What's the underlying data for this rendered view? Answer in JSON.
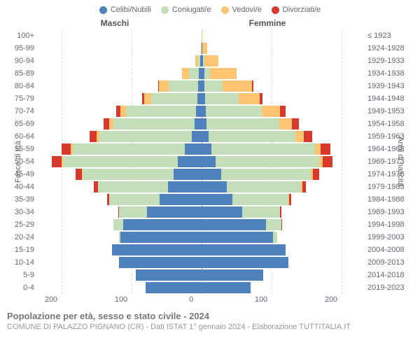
{
  "legend": [
    {
      "label": "Celibi/Nubili",
      "color": "#4f81bd"
    },
    {
      "label": "Coniugati/e",
      "color": "#c3deb8"
    },
    {
      "label": "Vedovi/e",
      "color": "#fdc571"
    },
    {
      "label": "Divorziati/e",
      "color": "#d73a2d"
    }
  ],
  "headers": {
    "male": "Maschi",
    "female": "Femmine"
  },
  "y_axis_left": "Fasce di età",
  "y_axis_right": "Anni di nascita",
  "colors": {
    "celibi": "#4f81bd",
    "coniugati": "#c3deb8",
    "vedovi": "#fdc571",
    "divorziati": "#d73a2d",
    "grid": "#dddddd",
    "text": "#667788"
  },
  "x_axis": {
    "max": 218,
    "ticks": [
      -200,
      -100,
      0,
      100,
      200
    ],
    "labels": [
      "200",
      "100",
      "0",
      "100",
      "200"
    ]
  },
  "age_bands": [
    {
      "age": "100+",
      "birth": "≤ 1923",
      "m": {
        "c": 0,
        "co": 0,
        "v": 0,
        "d": 0
      },
      "f": {
        "c": 0,
        "co": 0,
        "v": 1,
        "d": 0
      }
    },
    {
      "age": "95-99",
      "birth": "1924-1928",
      "m": {
        "c": 0,
        "co": 0,
        "v": 1,
        "d": 0
      },
      "f": {
        "c": 1,
        "co": 0,
        "v": 7,
        "d": 0
      }
    },
    {
      "age": "90-94",
      "birth": "1929-1933",
      "m": {
        "c": 2,
        "co": 3,
        "v": 4,
        "d": 0
      },
      "f": {
        "c": 2,
        "co": 2,
        "v": 20,
        "d": 0
      }
    },
    {
      "age": "85-89",
      "birth": "1934-1938",
      "m": {
        "c": 4,
        "co": 14,
        "v": 10,
        "d": 0
      },
      "f": {
        "c": 4,
        "co": 8,
        "v": 38,
        "d": 0
      }
    },
    {
      "age": "80-84",
      "birth": "1939-1943",
      "m": {
        "c": 5,
        "co": 42,
        "v": 14,
        "d": 1
      },
      "f": {
        "c": 4,
        "co": 26,
        "v": 42,
        "d": 2
      }
    },
    {
      "age": "75-79",
      "birth": "1944-1948",
      "m": {
        "c": 6,
        "co": 66,
        "v": 10,
        "d": 3
      },
      "f": {
        "c": 5,
        "co": 48,
        "v": 30,
        "d": 4
      }
    },
    {
      "age": "70-74",
      "birth": "1949-1953",
      "m": {
        "c": 8,
        "co": 100,
        "v": 8,
        "d": 6
      },
      "f": {
        "c": 6,
        "co": 80,
        "v": 26,
        "d": 8
      }
    },
    {
      "age": "65-69",
      "birth": "1954-1958",
      "m": {
        "c": 10,
        "co": 116,
        "v": 6,
        "d": 8
      },
      "f": {
        "c": 7,
        "co": 104,
        "v": 18,
        "d": 10
      }
    },
    {
      "age": "60-64",
      "birth": "1959-1963",
      "m": {
        "c": 14,
        "co": 132,
        "v": 4,
        "d": 10
      },
      "f": {
        "c": 10,
        "co": 124,
        "v": 12,
        "d": 12
      }
    },
    {
      "age": "55-59",
      "birth": "1964-1968",
      "m": {
        "c": 24,
        "co": 160,
        "v": 3,
        "d": 13
      },
      "f": {
        "c": 14,
        "co": 148,
        "v": 8,
        "d": 14
      }
    },
    {
      "age": "50-54",
      "birth": "1969-1973",
      "m": {
        "c": 34,
        "co": 164,
        "v": 2,
        "d": 14
      },
      "f": {
        "c": 20,
        "co": 148,
        "v": 5,
        "d": 14
      }
    },
    {
      "age": "45-49",
      "birth": "1974-1978",
      "m": {
        "c": 40,
        "co": 130,
        "v": 1,
        "d": 9
      },
      "f": {
        "c": 28,
        "co": 128,
        "v": 3,
        "d": 9
      }
    },
    {
      "age": "40-44",
      "birth": "1979-1983",
      "m": {
        "c": 48,
        "co": 100,
        "v": 0,
        "d": 6
      },
      "f": {
        "c": 36,
        "co": 106,
        "v": 2,
        "d": 5
      }
    },
    {
      "age": "35-39",
      "birth": "1984-1988",
      "m": {
        "c": 60,
        "co": 72,
        "v": 0,
        "d": 3
      },
      "f": {
        "c": 44,
        "co": 80,
        "v": 1,
        "d": 3
      }
    },
    {
      "age": "30-34",
      "birth": "1989-1993",
      "m": {
        "c": 78,
        "co": 40,
        "v": 0,
        "d": 1
      },
      "f": {
        "c": 58,
        "co": 54,
        "v": 0,
        "d": 2
      }
    },
    {
      "age": "25-29",
      "birth": "1994-1998",
      "m": {
        "c": 112,
        "co": 14,
        "v": 0,
        "d": 0
      },
      "f": {
        "c": 92,
        "co": 22,
        "v": 0,
        "d": 1
      }
    },
    {
      "age": "20-24",
      "birth": "1999-2003",
      "m": {
        "c": 116,
        "co": 2,
        "v": 0,
        "d": 0
      },
      "f": {
        "c": 102,
        "co": 6,
        "v": 0,
        "d": 0
      }
    },
    {
      "age": "15-19",
      "birth": "2004-2008",
      "m": {
        "c": 128,
        "co": 0,
        "v": 0,
        "d": 0
      },
      "f": {
        "c": 120,
        "co": 0,
        "v": 0,
        "d": 0
      }
    },
    {
      "age": "10-14",
      "birth": "2009-2013",
      "m": {
        "c": 118,
        "co": 0,
        "v": 0,
        "d": 0
      },
      "f": {
        "c": 124,
        "co": 0,
        "v": 0,
        "d": 0
      }
    },
    {
      "age": "5-9",
      "birth": "2014-2018",
      "m": {
        "c": 94,
        "co": 0,
        "v": 0,
        "d": 0
      },
      "f": {
        "c": 88,
        "co": 0,
        "v": 0,
        "d": 0
      }
    },
    {
      "age": "0-4",
      "birth": "2019-2023",
      "m": {
        "c": 80,
        "co": 0,
        "v": 0,
        "d": 0
      },
      "f": {
        "c": 70,
        "co": 0,
        "v": 0,
        "d": 0
      }
    }
  ],
  "footer": {
    "title": "Popolazione per età, sesso e stato civile - 2024",
    "sub": "COMUNE DI PALAZZO PIGNANO (CR) - Dati ISTAT 1° gennaio 2024 - Elaborazione TUTTITALIA.IT"
  }
}
